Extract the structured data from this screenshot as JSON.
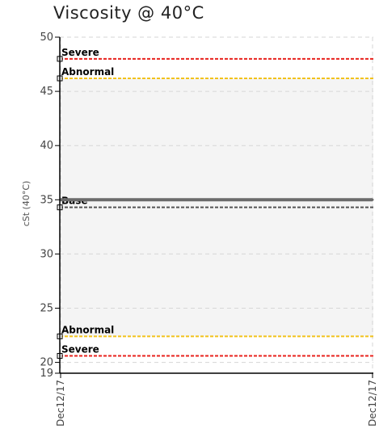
{
  "chart_data": {
    "type": "line",
    "title": "Viscosity @ 40°C",
    "ylabel": "cSt (40°C)",
    "xlabel": "",
    "ylim": [
      19,
      50
    ],
    "yticks": [
      "19",
      "20",
      "25",
      "30",
      "35",
      "40",
      "45",
      "50"
    ],
    "x_categories": [
      "Dec12/17",
      "Dec12/17"
    ],
    "grid": true,
    "bands": [
      {
        "from": 22.4,
        "to": 46.2,
        "color": "#f4f4f4"
      }
    ],
    "reference_lines": [
      {
        "label": "Severe",
        "value": 48,
        "color": "#e8231e",
        "style": "dashed"
      },
      {
        "label": "Abnormal",
        "value": 46.2,
        "color": "#f2c21b",
        "style": "dashed"
      },
      {
        "label": "Base",
        "value": 34.3,
        "color": "#555555",
        "style": "dashed"
      },
      {
        "label": "Abnormal",
        "value": 22.4,
        "color": "#f2c21b",
        "style": "dashed"
      },
      {
        "label": "Severe",
        "value": 20.6,
        "color": "#e8231e",
        "style": "dashed"
      }
    ],
    "series": [
      {
        "label": "",
        "color": "#6b6b6b",
        "x": [
          "Dec12/17",
          "Dec12/17"
        ],
        "values": [
          35,
          35
        ]
      }
    ]
  }
}
